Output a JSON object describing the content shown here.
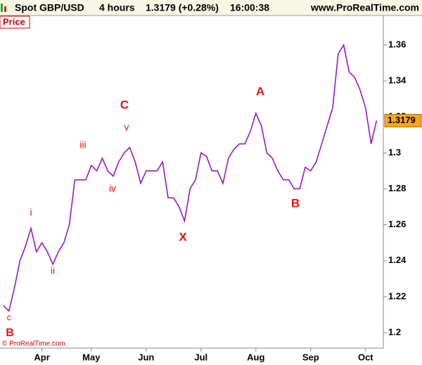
{
  "header": {
    "instrument": "Spot GBP/USD",
    "period": "4 hours",
    "quote": "1.3179 (+0.28%)",
    "time": "16:00:38",
    "site": "www.ProRealTime.com"
  },
  "panel_label": "Price",
  "footer": "© ProRealTime.com",
  "chart_data": {
    "type": "line",
    "categories": [
      null,
      null,
      null,
      null,
      null,
      null,
      null,
      "Apr",
      null,
      null,
      null,
      null,
      null,
      null,
      null,
      null,
      "May",
      null,
      null,
      null,
      null,
      null,
      null,
      null,
      null,
      null,
      "Jun",
      null,
      null,
      null,
      null,
      null,
      null,
      null,
      null,
      null,
      "Jul",
      null,
      null,
      null,
      null,
      null,
      null,
      null,
      null,
      null,
      "Aug",
      null,
      null,
      null,
      null,
      null,
      null,
      null,
      null,
      null,
      "Sep",
      null,
      null,
      null,
      null,
      null,
      null,
      null,
      null,
      null,
      "Oct",
      null,
      null
    ],
    "series": [
      {
        "name": "GBP/USD",
        "color": "#9a17c4",
        "values": [
          1.215,
          1.212,
          1.225,
          1.24,
          1.248,
          1.258,
          1.245,
          1.25,
          1.245,
          1.238,
          1.245,
          1.25,
          1.26,
          1.285,
          1.285,
          1.285,
          1.293,
          1.29,
          1.297,
          1.29,
          1.287,
          1.295,
          1.3,
          1.303,
          1.295,
          1.283,
          1.29,
          1.29,
          1.29,
          1.295,
          1.275,
          1.275,
          1.27,
          1.262,
          1.28,
          1.285,
          1.3,
          1.298,
          1.29,
          1.29,
          1.283,
          1.297,
          1.302,
          1.305,
          1.305,
          1.312,
          1.322,
          1.315,
          1.3,
          1.297,
          1.29,
          1.285,
          1.285,
          1.28,
          1.28,
          1.292,
          1.29,
          1.295,
          1.305,
          1.315,
          1.325,
          1.355,
          1.36,
          1.345,
          1.342,
          1.335,
          1.325,
          1.305,
          1.3179
        ]
      }
    ],
    "ylim": [
      1.1914,
      1.3764
    ],
    "yticks": [
      1.2,
      1.22,
      1.24,
      1.26,
      1.28,
      1.3,
      1.32,
      1.34,
      1.36
    ],
    "annotations": [
      "c",
      "B",
      "i",
      "ii",
      "iii",
      "iv",
      "v",
      "C",
      "X",
      "A",
      "B"
    ],
    "annotation_color": "#e8110f"
  }
}
